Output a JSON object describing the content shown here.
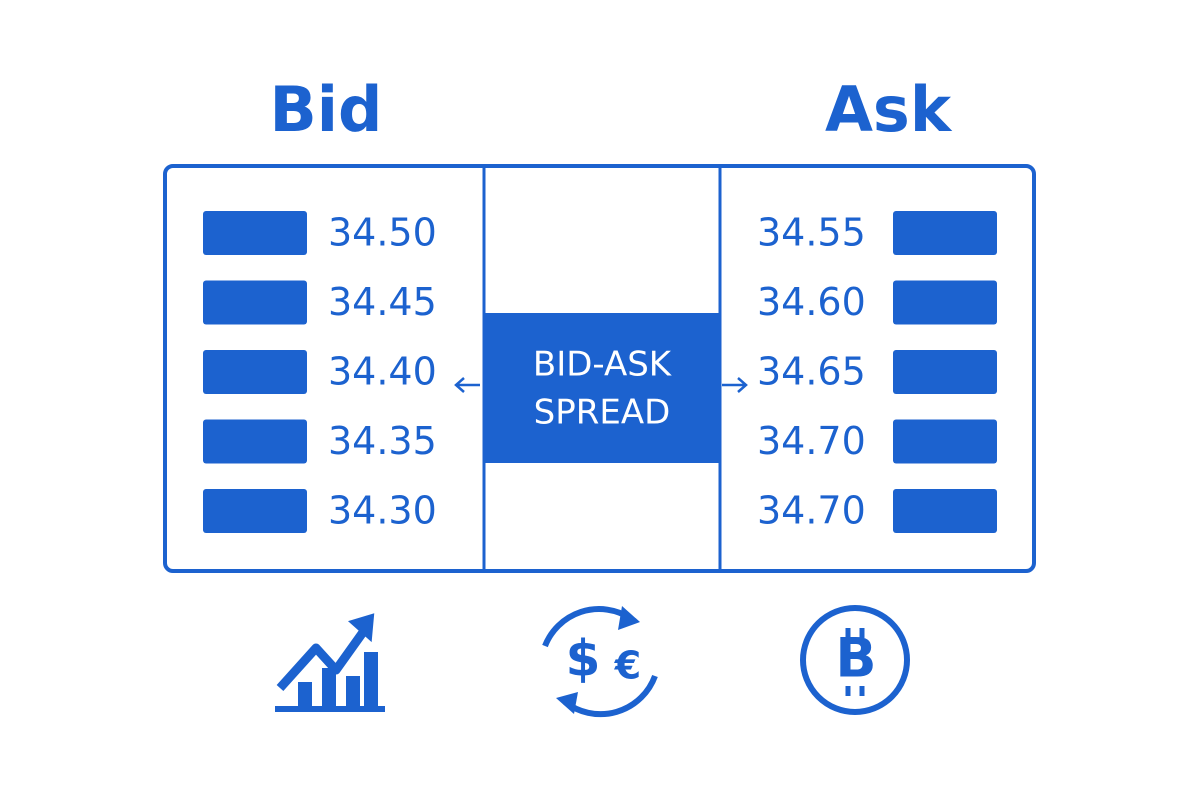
{
  "bid": {
    "title": "Bid",
    "prices": [
      "34.50",
      "34.45",
      "34.40",
      "34.35",
      "34.30"
    ]
  },
  "ask": {
    "title": "Ask",
    "prices": [
      "34.55",
      "34.60",
      "34.65",
      "34.70",
      "34.70"
    ]
  },
  "spread": {
    "lines": [
      "BID-ASK",
      "SPREAD"
    ]
  }
}
